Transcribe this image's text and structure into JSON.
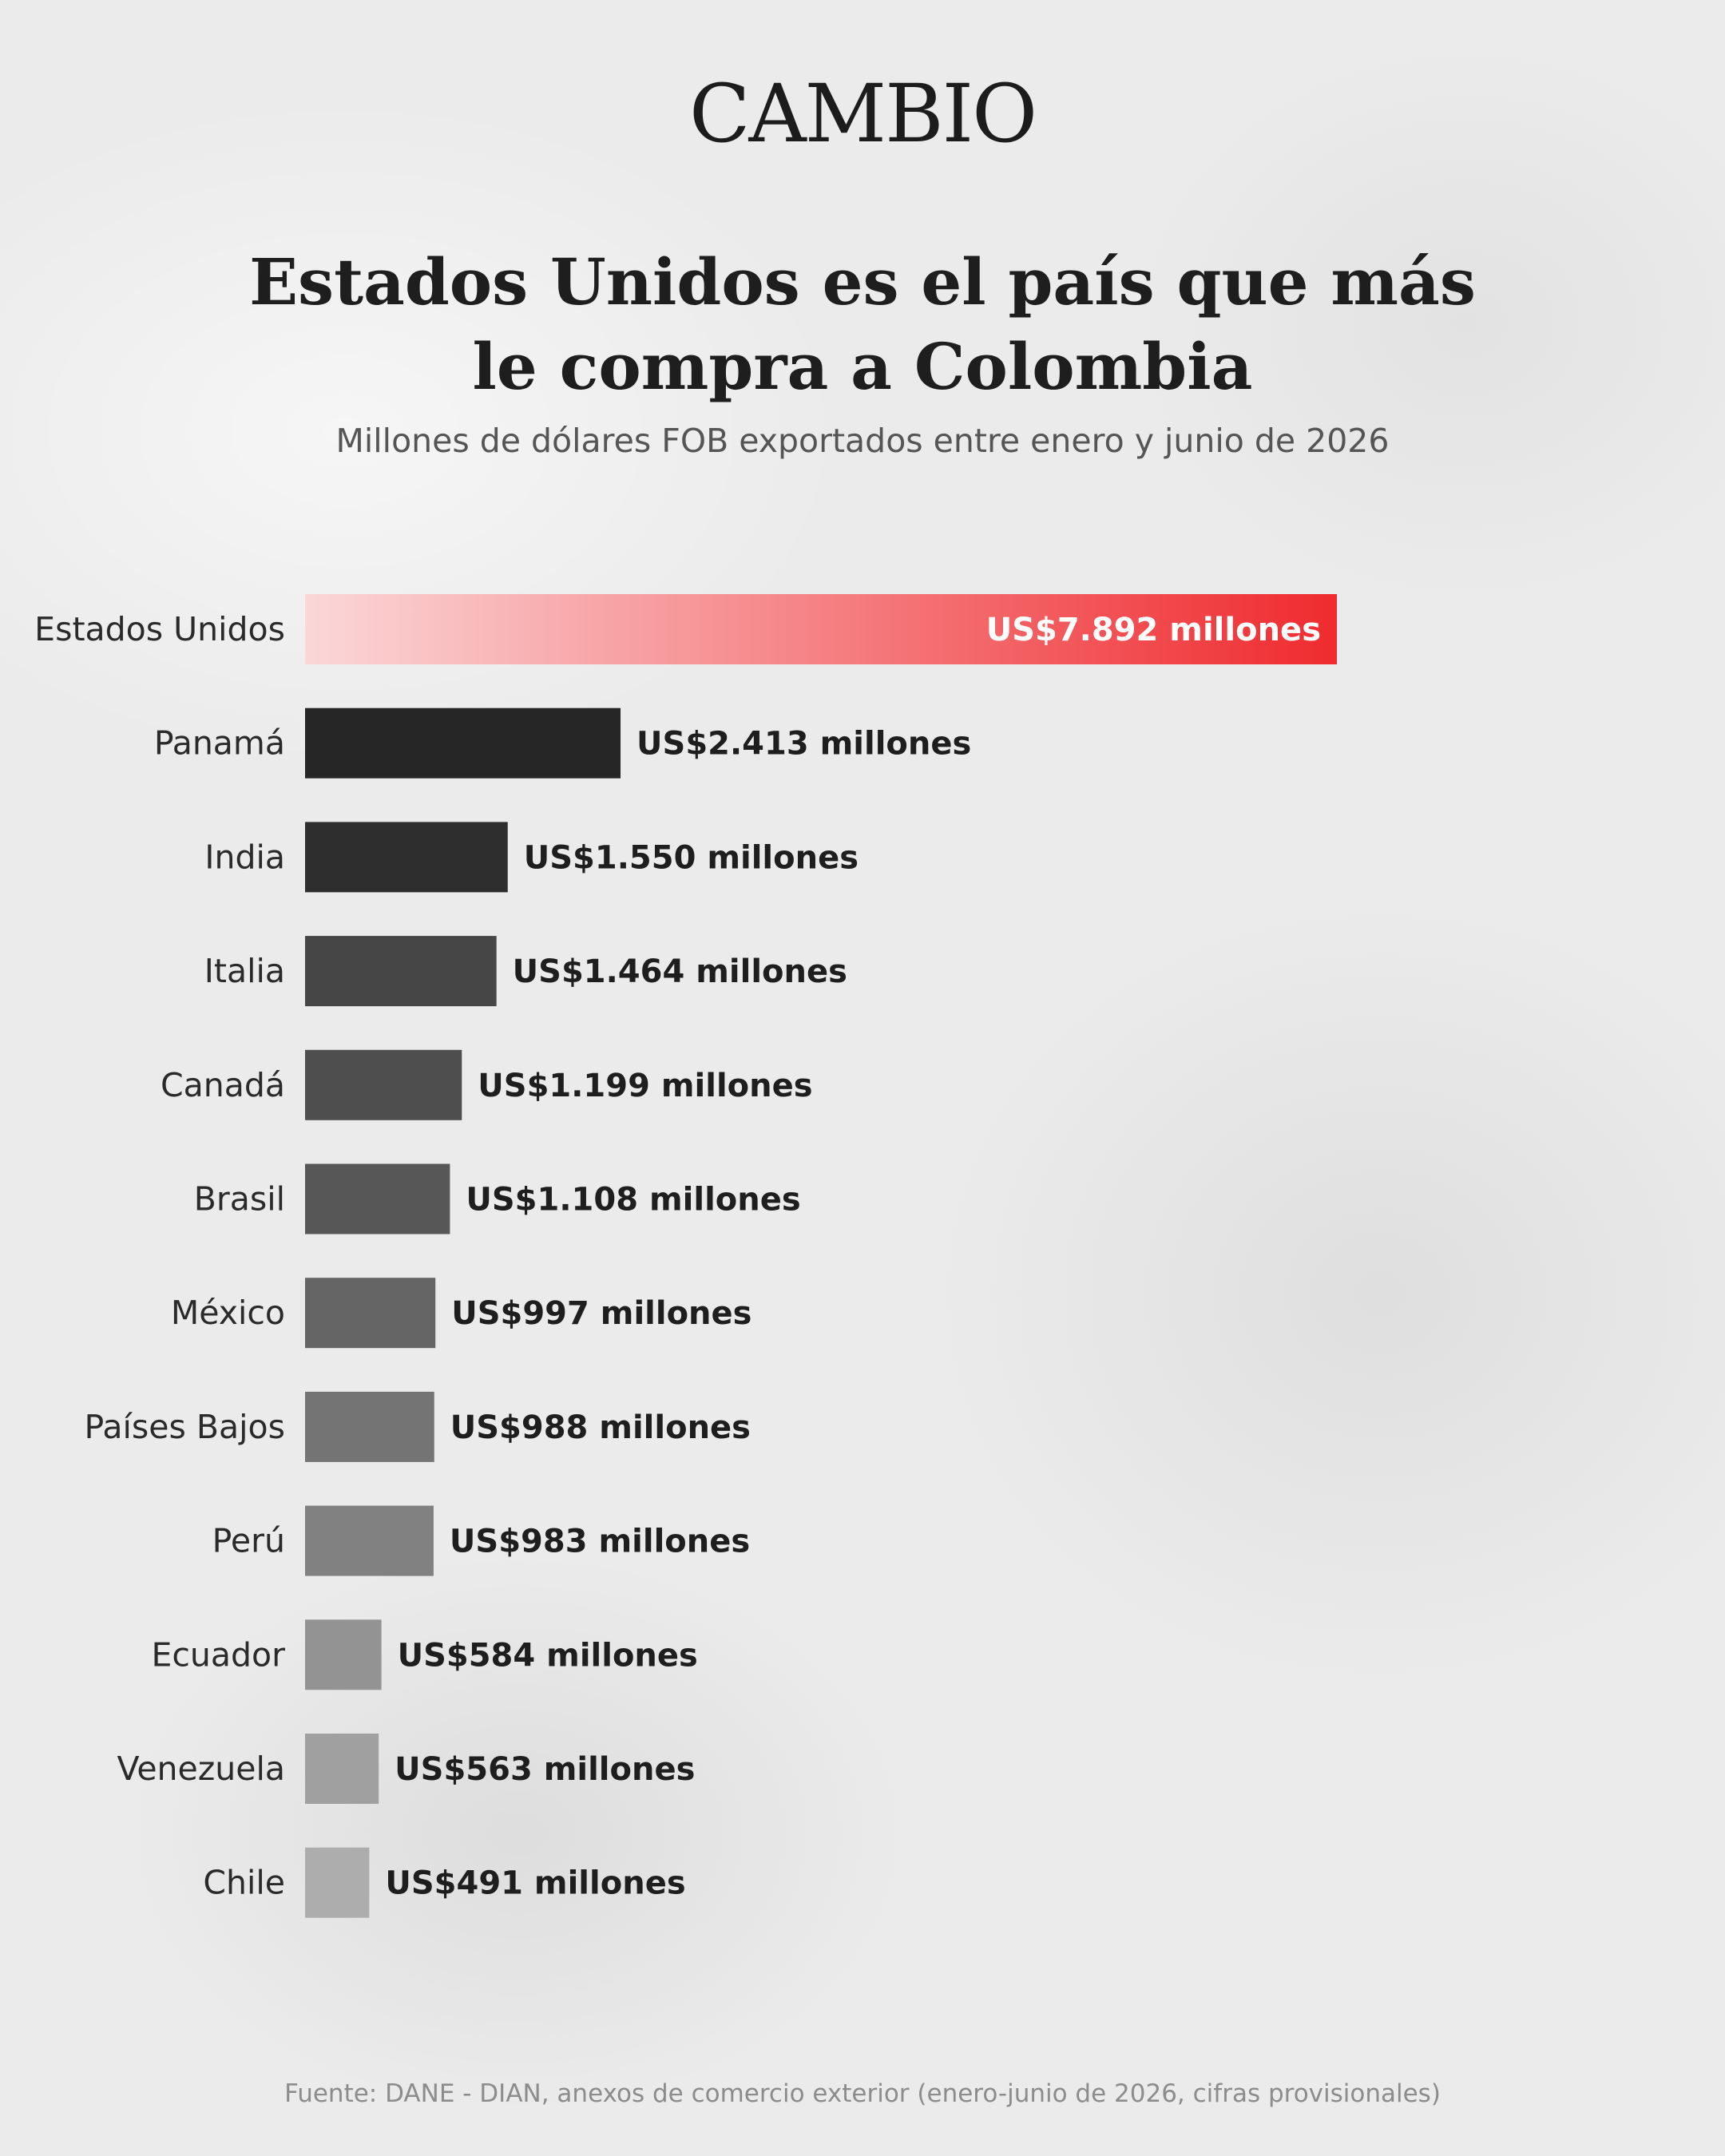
{
  "logo": "CAMBIO",
  "title_line1": "Estados Unidos es el país que más",
  "title_line2": "le compra a Colombia",
  "subtitle": "Millones de dólares FOB exportados entre enero y junio de 2026",
  "source": "Fuente: DANE - DIAN, anexos de comercio exterior (enero-junio de 2026, cifras provisionales)",
  "chart_data": {
    "type": "bar",
    "orientation": "horizontal",
    "title": "Estados Unidos es el país que más le compra a Colombia",
    "subtitle": "Millones de dólares FOB exportados entre enero y junio de 2026",
    "categories": [
      "Estados Unidos",
      "Panamá",
      "India",
      "Italia",
      "Canadá",
      "Brasil",
      "México",
      "Países Bajos",
      "Perú",
      "Ecuador",
      "Venezuela",
      "Chile"
    ],
    "values": [
      7892,
      2413,
      1550,
      1464,
      1199,
      1108,
      997,
      988,
      983,
      584,
      563,
      491
    ],
    "data_labels": [
      "US$7.892 millones",
      "US$2.413 millones",
      "US$1.550 millones",
      "US$1.464 millones",
      "US$1.199 millones",
      "US$1.108 millones",
      "US$997 millones",
      "US$988 millones",
      "US$983 millones",
      "US$584 millones",
      "US$563 millones",
      "US$491 millones"
    ],
    "bar_colors": [
      "#ef2b2f",
      "#262626",
      "#2e2e2e",
      "#464646",
      "#4e4e4e",
      "#575757",
      "#656565",
      "#747474",
      "#818181",
      "#939393",
      "#a0a0a0",
      "#adadad"
    ],
    "highlight_gradient": [
      "#fbd7d8",
      "#ef2b2f"
    ],
    "xlim": [
      0,
      7892
    ],
    "grid": false,
    "axes_visible": false
  }
}
